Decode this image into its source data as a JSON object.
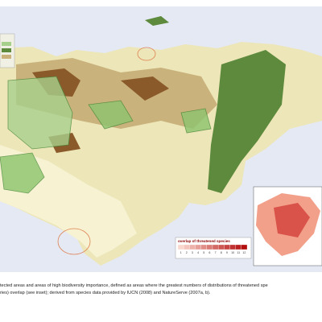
{
  "legend": {
    "title": "overlap of threatened species",
    "labels": [
      "1",
      "2",
      "3",
      "4",
      "5",
      "6",
      "7",
      "8",
      "9",
      "10",
      "11",
      "12"
    ]
  },
  "caption": {
    "line1": "tected areas and areas of high biodiversity importance, defined as areas where the greatest numbers of distributions of threatened spe",
    "line2": "ries) overlap (see inset); derived from species data provided by IUCN (2008) and NatureServe (2007a, b)."
  }
}
